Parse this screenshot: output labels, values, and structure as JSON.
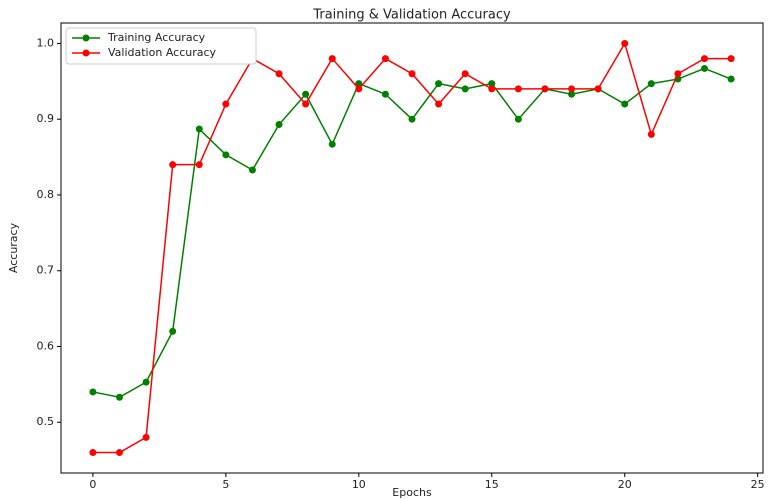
{
  "chart_data": {
    "type": "line",
    "title": "Training & Validation Accuracy",
    "x_label": "Epochs",
    "y_label": "Accuracy",
    "x": [
      0,
      1,
      2,
      3,
      4,
      5,
      6,
      7,
      8,
      9,
      10,
      11,
      12,
      13,
      14,
      15,
      16,
      17,
      18,
      19,
      20,
      21,
      22,
      23,
      24
    ],
    "series": [
      {
        "name": "Training Accuracy",
        "color": "#008000",
        "values": [
          0.54,
          0.533,
          0.553,
          0.62,
          0.887,
          0.853,
          0.833,
          0.893,
          0.933,
          0.867,
          0.947,
          0.933,
          0.9,
          0.947,
          0.94,
          0.947,
          0.9,
          0.94,
          0.933,
          0.94,
          0.92,
          0.947,
          0.953,
          0.967,
          0.953
        ]
      },
      {
        "name": "Validation Accuracy",
        "color": "#ff0000",
        "values": [
          0.46,
          0.46,
          0.48,
          0.84,
          0.84,
          0.92,
          0.98,
          0.96,
          0.92,
          0.98,
          0.94,
          0.98,
          0.96,
          0.92,
          0.96,
          0.94,
          0.94,
          0.94,
          0.94,
          0.94,
          1.0,
          0.88,
          0.96,
          0.98,
          0.98
        ]
      }
    ],
    "xlim": [
      -1.2,
      25.2
    ],
    "xticks": [
      0,
      5,
      10,
      15,
      20,
      25
    ],
    "ylim": [
      0.433,
      1.027
    ],
    "yticks": [
      0.5,
      0.6,
      0.7,
      0.8,
      0.9,
      {
        "value": 1.0,
        "label": "1.0"
      }
    ],
    "legend": "upper left",
    "grid": false
  }
}
